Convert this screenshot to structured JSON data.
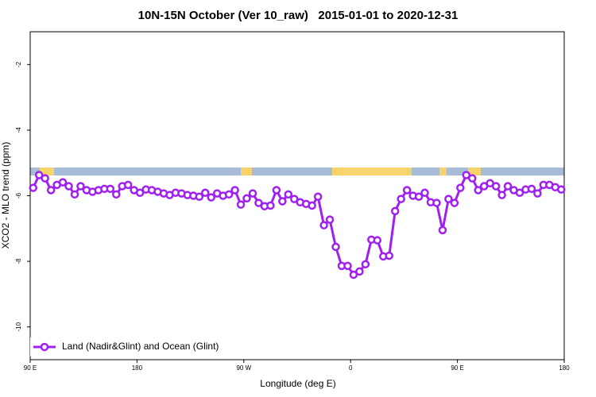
{
  "chart_data": {
    "type": "line",
    "title": "10N-15N October (Ver 10_raw)   2015-01-01 to 2020-12-31",
    "x_label": "Longitude (deg E)",
    "y_label": "XCO2 - MLO trend (ppm)",
    "xlim": [
      90,
      540
    ],
    "xticks": [
      {
        "value": 90,
        "label": "90 E"
      },
      {
        "value": 180,
        "label": "180"
      },
      {
        "value": 270,
        "label": "90 W"
      },
      {
        "value": 360,
        "label": "0"
      },
      {
        "value": 450,
        "label": "90 E"
      },
      {
        "value": 540,
        "label": "180"
      }
    ],
    "ylim": [
      -11,
      -1
    ],
    "yticks": [
      -2,
      -4,
      -6,
      -8,
      -10
    ],
    "grid": false,
    "legend": "bottom-left",
    "x": [
      92.5,
      97.5,
      102.5,
      107.5,
      112.5,
      117.5,
      122.5,
      127.5,
      132.5,
      137.5,
      142.5,
      147.5,
      152.5,
      157.5,
      162.5,
      167.5,
      172.5,
      177.5,
      182.5,
      187.5,
      192.5,
      197.5,
      202.5,
      207.5,
      212.5,
      217.5,
      222.5,
      227.5,
      232.5,
      237.5,
      242.5,
      247.5,
      252.5,
      257.5,
      262.5,
      267.5,
      272.5,
      277.5,
      282.5,
      287.5,
      292.5,
      297.5,
      302.5,
      307.5,
      312.5,
      317.5,
      322.5,
      327.5,
      332.5,
      337.5,
      342.5,
      347.5,
      352.5,
      357.5,
      362.5,
      367.5,
      372.5,
      377.5,
      382.5,
      387.5,
      392.5,
      397.5,
      402.5,
      407.5,
      412.5,
      417.5,
      422.5,
      427.5,
      432.5,
      437.5,
      442.5,
      447.5,
      452.5,
      457.5,
      462.5,
      467.5,
      472.5,
      477.5,
      482.5,
      487.5,
      492.5,
      497.5,
      502.5,
      507.5,
      512.5,
      517.5,
      522.5,
      527.5,
      532.5,
      537.5
    ],
    "series": [
      {
        "name": "Land (Nadir&Glint) and Ocean (Glint)",
        "color": "#a020f0",
        "values": [
          -5.76,
          -5.37,
          -5.47,
          -5.83,
          -5.67,
          -5.59,
          -5.71,
          -5.96,
          -5.71,
          -5.83,
          -5.88,
          -5.83,
          -5.79,
          -5.79,
          -5.96,
          -5.71,
          -5.67,
          -5.83,
          -5.91,
          -5.81,
          -5.83,
          -5.88,
          -5.93,
          -5.98,
          -5.91,
          -5.93,
          -5.98,
          -6.0,
          -6.03,
          -5.91,
          -6.05,
          -5.93,
          -6.0,
          -5.96,
          -5.83,
          -6.27,
          -6.08,
          -5.93,
          -6.22,
          -6.32,
          -6.3,
          -5.83,
          -6.17,
          -5.96,
          -6.1,
          -6.2,
          -6.25,
          -6.3,
          -6.03,
          -6.9,
          -6.73,
          -7.56,
          -8.14,
          -8.14,
          -8.41,
          -8.31,
          -8.09,
          -7.34,
          -7.36,
          -7.85,
          -7.83,
          -6.47,
          -6.1,
          -5.83,
          -6.0,
          -6.03,
          -5.91,
          -6.2,
          -6.22,
          -7.05,
          -6.1,
          -6.22,
          -5.76,
          -5.37,
          -5.47,
          -5.83,
          -5.71,
          -5.62,
          -5.71,
          -5.98,
          -5.71,
          -5.83,
          -5.91,
          -5.81,
          -5.79,
          -5.93,
          -5.67,
          -5.67,
          -5.74,
          -5.81
        ]
      }
    ]
  }
}
